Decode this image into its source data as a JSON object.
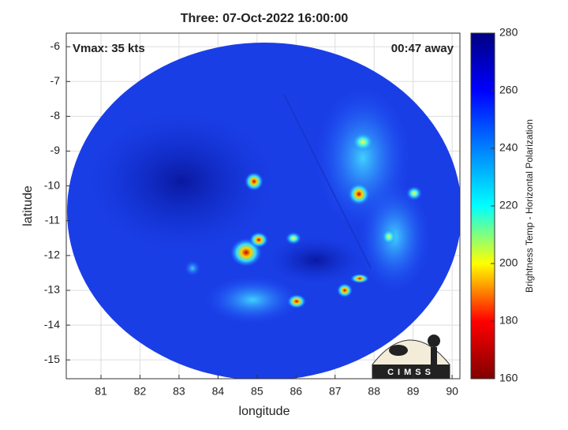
{
  "chart_data": {
    "type": "image",
    "title": "Three: 07-Oct-2022 16:00:00",
    "annotations": [
      "Vmax: 35 kts",
      "00:47 away"
    ],
    "xlabel": "longitude",
    "ylabel": "latitude",
    "xlim": [
      80.11,
      90.2
    ],
    "xticks": [
      81,
      82,
      83,
      84,
      85,
      86,
      87,
      88,
      89,
      90
    ],
    "ylim": [
      -15.54,
      -5.61
    ],
    "yticks": [
      -15,
      -14,
      -13,
      -12,
      -11,
      -10,
      -9,
      -8,
      -7,
      -6
    ],
    "grid": true,
    "colorbar": {
      "label": "Brightness Temp - Horizontal Polarization",
      "lim": [
        160,
        280
      ],
      "ticks": [
        160,
        180,
        200,
        220,
        240,
        260,
        280
      ],
      "colormap": [
        "#800000",
        "#ff0000",
        "#ffff00",
        "#00ffff",
        "#0080ff",
        "#0000ff",
        "#000080"
      ]
    },
    "logo": "CIMSS"
  }
}
